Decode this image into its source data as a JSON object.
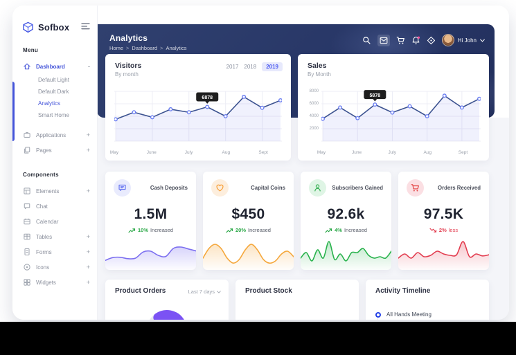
{
  "sidebar": {
    "logo_text": "Sofbox",
    "menu_label": "Menu",
    "components_label": "Components",
    "dashboard": {
      "label": "Dashboard",
      "toggle": "-"
    },
    "submenu": [
      {
        "label": "Default Light"
      },
      {
        "label": "Default Dark"
      },
      {
        "label": "Analytics"
      },
      {
        "label": "Smart Home"
      }
    ],
    "menu_items": [
      {
        "label": "Applications",
        "suffix": "+"
      },
      {
        "label": "Pages",
        "suffix": "+"
      }
    ],
    "component_items": [
      {
        "label": "Elements",
        "suffix": "+"
      },
      {
        "label": "Chat",
        "suffix": ""
      },
      {
        "label": "Calendar",
        "suffix": ""
      },
      {
        "label": "Tables",
        "suffix": "+"
      },
      {
        "label": "Forms",
        "suffix": "+"
      },
      {
        "label": "Icons",
        "suffix": "+"
      },
      {
        "label": "Widgets",
        "suffix": "+"
      }
    ]
  },
  "header": {
    "title": "Analytics",
    "breadcrumb": {
      "home": "Home",
      "dashboard": "Dashboard",
      "current": "Analytics",
      "sep": ">"
    },
    "greeting": "Hi John"
  },
  "visitors": {
    "title": "Visitors",
    "subtitle": "By month",
    "years": [
      "2017",
      "2018",
      "2019"
    ],
    "active_year": "2019",
    "tooltip_value": "6878",
    "tooltip_index": 5,
    "x_labels": [
      "May",
      "June",
      "July",
      "Aug",
      "Sept"
    ],
    "values": [
      4400,
      5800,
      4800,
      6400,
      5800,
      6878,
      5000,
      8900,
      6700,
      8200
    ],
    "ylim": [
      0,
      10000
    ]
  },
  "sales": {
    "title": "Sales",
    "subtitle": "By Month",
    "tooltip_value": "5878",
    "tooltip_index": 3,
    "x_labels": [
      "May",
      "June",
      "July",
      "Aug",
      "Sept"
    ],
    "y_ticks": [
      8000,
      6000,
      4000,
      2000
    ],
    "values": [
      3600,
      5400,
      3700,
      5878,
      4600,
      5600,
      4000,
      7300,
      5400,
      6800
    ],
    "ylim": [
      0,
      8000
    ]
  },
  "stats": [
    {
      "label": "Cash Deposits",
      "value": "1.5M",
      "change": "10%",
      "change_text": "Increased",
      "direction": "up",
      "color": "#7c6ff0",
      "icon": "chat-icon",
      "icon_bg": "#e9ebfd",
      "icon_color": "#5f6ef0",
      "spark": [
        2.2,
        3.2,
        3.3,
        2.8,
        3.0,
        5.2,
        5.5,
        4.0,
        3.6,
        6.5,
        7.0,
        6.3,
        5.6
      ]
    },
    {
      "label": "Capital Coins",
      "value": "$450",
      "change": "20%",
      "change_text": "Increased",
      "direction": "up",
      "color": "#f5a73b",
      "icon": "heart-icon",
      "icon_bg": "#fdeedd",
      "icon_color": "#f79b2e",
      "spark": [
        3,
        6.5,
        8,
        6.5,
        3,
        1.2,
        2.5,
        6,
        8,
        6,
        2.5,
        1.2,
        2,
        4.5,
        5.5,
        3.5
      ]
    },
    {
      "label": "Subscribers Gained",
      "value": "92.6k",
      "change": "4%",
      "change_text": "Increased",
      "direction": "up",
      "color": "#28b24c",
      "icon": "user-icon",
      "icon_bg": "#dff5e5",
      "icon_color": "#2fae4d",
      "spark": [
        3,
        5,
        2,
        6,
        3,
        9,
        2.5,
        4.5,
        2,
        5,
        5,
        6.5,
        4,
        3,
        3.5,
        3,
        5.5
      ]
    },
    {
      "label": "Orders Received",
      "value": "97.5K",
      "change": "2%",
      "change_text": "less",
      "direction": "down",
      "color": "#e23b4e",
      "icon": "cart-icon",
      "icon_bg": "#fbdfe3",
      "icon_color": "#e23b3b",
      "spark": [
        3,
        4.5,
        3,
        5,
        3.5,
        4,
        5.5,
        4.5,
        4,
        4.2,
        9,
        3.5,
        4.5,
        3.8,
        4.2
      ]
    }
  ],
  "bottom": {
    "product_orders": {
      "title": "Product Orders",
      "filter": "Last 7 days",
      "donut": {
        "segments": [
          {
            "value": 45,
            "color": "#7b52f4"
          },
          {
            "value": 55,
            "color": "#e7e8ef"
          }
        ]
      }
    },
    "product_stock": {
      "title": "Product Stock"
    },
    "activity": {
      "title": "Activity Timeline",
      "items": [
        {
          "label": "All Hands Meeting"
        }
      ]
    }
  }
}
